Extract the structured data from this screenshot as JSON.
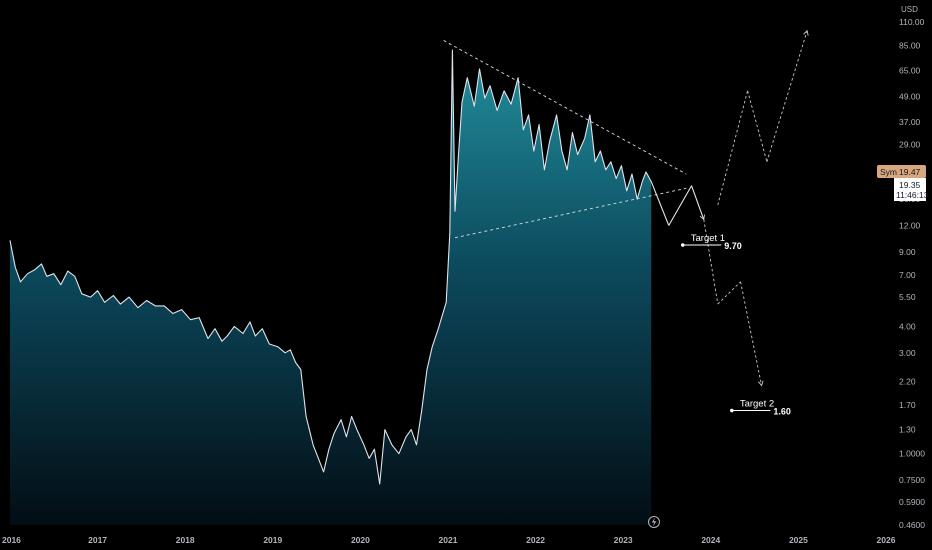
{
  "currency": "USD",
  "price_label": {
    "symbol_text": "Sym",
    "price_text": "19.47",
    "last_price": "19.35",
    "countdown": "11:46:13",
    "bg_color": "#d9a77e"
  },
  "colors": {
    "background": "#000000",
    "price_line": "#e0e3eb",
    "area_top": "#22909c",
    "area_bottom": "#030d14",
    "projection": "#c9ccd3",
    "axis_text": "#b2b5be"
  },
  "annotations": {
    "target1": {
      "label": "Target 1",
      "value": "9.70"
    },
    "target2": {
      "label": "Target 2",
      "value": "1.60"
    }
  },
  "footer_icon": "lightning-icon",
  "chart_data": {
    "type": "area",
    "title": "",
    "xlabel": "",
    "ylabel": "",
    "y_scale": "log",
    "ylim": [
      0.46,
      110
    ],
    "xlim": [
      2016.0,
      2026.0
    ],
    "y_ticks": [
      "110.00",
      "85.00",
      "65.00",
      "49.00",
      "37.00",
      "29.00",
      "16.00",
      "12.00",
      "9.00",
      "7.00",
      "5.50",
      "4.00",
      "3.00",
      "2.20",
      "1.70",
      "1.30",
      "1.0000",
      "0.7500",
      "0.5900",
      "0.4600"
    ],
    "x_ticks": [
      "2016",
      "2017",
      "2018",
      "2019",
      "2020",
      "2021",
      "2022",
      "2023",
      "2024",
      "2025",
      "2026"
    ],
    "series": [
      {
        "values": [
          [
            2016.0,
            10.2
          ],
          [
            2016.06,
            7.6
          ],
          [
            2016.12,
            6.5
          ],
          [
            2016.2,
            7.1
          ],
          [
            2016.28,
            7.4
          ],
          [
            2016.36,
            7.9
          ],
          [
            2016.42,
            6.9
          ],
          [
            2016.5,
            7.1
          ],
          [
            2016.58,
            6.3
          ],
          [
            2016.66,
            7.3
          ],
          [
            2016.74,
            6.9
          ],
          [
            2016.82,
            5.7
          ],
          [
            2016.92,
            5.5
          ],
          [
            2017.0,
            5.9
          ],
          [
            2017.08,
            5.2
          ],
          [
            2017.18,
            5.6
          ],
          [
            2017.26,
            5.1
          ],
          [
            2017.36,
            5.5
          ],
          [
            2017.46,
            4.9
          ],
          [
            2017.56,
            5.3
          ],
          [
            2017.66,
            5.0
          ],
          [
            2017.76,
            5.0
          ],
          [
            2017.86,
            4.6
          ],
          [
            2017.96,
            4.8
          ],
          [
            2018.06,
            4.3
          ],
          [
            2018.16,
            4.4
          ],
          [
            2018.26,
            3.5
          ],
          [
            2018.34,
            3.9
          ],
          [
            2018.42,
            3.4
          ],
          [
            2018.48,
            3.6
          ],
          [
            2018.56,
            4.0
          ],
          [
            2018.66,
            3.7
          ],
          [
            2018.74,
            4.2
          ],
          [
            2018.8,
            3.6
          ],
          [
            2018.88,
            3.9
          ],
          [
            2018.96,
            3.3
          ],
          [
            2019.06,
            3.2
          ],
          [
            2019.14,
            3.0
          ],
          [
            2019.2,
            3.1
          ],
          [
            2019.26,
            2.7
          ],
          [
            2019.32,
            2.5
          ],
          [
            2019.38,
            1.5
          ],
          [
            2019.46,
            1.1
          ],
          [
            2019.52,
            0.95
          ],
          [
            2019.58,
            0.82
          ],
          [
            2019.64,
            1.05
          ],
          [
            2019.7,
            1.25
          ],
          [
            2019.78,
            1.45
          ],
          [
            2019.84,
            1.2
          ],
          [
            2019.9,
            1.5
          ],
          [
            2019.96,
            1.3
          ],
          [
            2020.04,
            1.1
          ],
          [
            2020.1,
            0.95
          ],
          [
            2020.16,
            1.05
          ],
          [
            2020.22,
            0.72
          ],
          [
            2020.28,
            1.3
          ],
          [
            2020.36,
            1.1
          ],
          [
            2020.44,
            1.0
          ],
          [
            2020.52,
            1.2
          ],
          [
            2020.58,
            1.3
          ],
          [
            2020.64,
            1.1
          ],
          [
            2020.7,
            1.6
          ],
          [
            2020.76,
            2.5
          ],
          [
            2020.82,
            3.2
          ],
          [
            2020.88,
            3.8
          ],
          [
            2020.92,
            4.3
          ],
          [
            2020.98,
            5.2
          ],
          [
            2021.02,
            11.0
          ],
          [
            2021.05,
            81.0
          ],
          [
            2021.08,
            14.0
          ],
          [
            2021.12,
            26.0
          ],
          [
            2021.16,
            46.0
          ],
          [
            2021.22,
            60.0
          ],
          [
            2021.3,
            44.0
          ],
          [
            2021.36,
            66.0
          ],
          [
            2021.42,
            48.0
          ],
          [
            2021.48,
            55.0
          ],
          [
            2021.56,
            42.0
          ],
          [
            2021.64,
            52.0
          ],
          [
            2021.72,
            45.0
          ],
          [
            2021.8,
            60.0
          ],
          [
            2021.86,
            34.0
          ],
          [
            2021.92,
            40.0
          ],
          [
            2021.98,
            27.0
          ],
          [
            2022.04,
            36.0
          ],
          [
            2022.1,
            22.0
          ],
          [
            2022.16,
            30.0
          ],
          [
            2022.24,
            40.0
          ],
          [
            2022.3,
            27.0
          ],
          [
            2022.36,
            22.0
          ],
          [
            2022.42,
            33.0
          ],
          [
            2022.48,
            26.0
          ],
          [
            2022.56,
            31.0
          ],
          [
            2022.62,
            40.0
          ],
          [
            2022.68,
            24.0
          ],
          [
            2022.74,
            27.0
          ],
          [
            2022.8,
            22.0
          ],
          [
            2022.86,
            24.0
          ],
          [
            2022.92,
            20.0
          ],
          [
            2022.98,
            23.0
          ],
          [
            2023.04,
            17.5
          ],
          [
            2023.1,
            21.0
          ],
          [
            2023.16,
            16.0
          ],
          [
            2023.22,
            19.5
          ],
          [
            2023.26,
            21.5
          ],
          [
            2023.32,
            19.35
          ]
        ]
      }
    ],
    "projection": [
      [
        2023.32,
        19.35
      ],
      [
        2023.52,
        12.0
      ],
      [
        2023.78,
        18.5
      ],
      [
        2023.92,
        12.8
      ],
      [
        2024.08,
        5.1
      ],
      [
        2024.34,
        6.5
      ],
      [
        2024.58,
        2.1
      ],
      [
        2024.08,
        15.0
      ],
      [
        2024.42,
        52.0
      ],
      [
        2024.64,
        24.0
      ],
      [
        2025.1,
        100.0
      ]
    ],
    "trendlines": [
      {
        "from": [
          2020.95,
          90.0
        ],
        "to": [
          2023.72,
          21.0
        ]
      },
      {
        "from": [
          2021.08,
          10.5
        ],
        "to": [
          2023.72,
          18.0
        ]
      }
    ],
    "targets": [
      {
        "name": "Target 1",
        "value": 9.7
      },
      {
        "name": "Target 2",
        "value": 1.6
      }
    ]
  }
}
